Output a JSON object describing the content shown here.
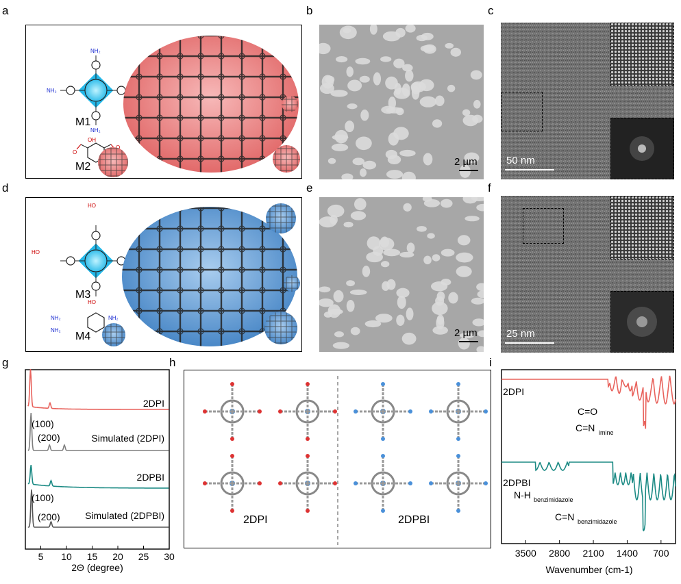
{
  "panels": {
    "a": {
      "label": "a",
      "m1": "M1",
      "m2": "M2"
    },
    "b": {
      "label": "b",
      "scale": "2 µm"
    },
    "c": {
      "label": "c",
      "scale": "50 nm"
    },
    "d": {
      "label": "d",
      "m3": "M3",
      "m4": "M4"
    },
    "e": {
      "label": "e",
      "scale": "2 µm"
    },
    "f": {
      "label": "f",
      "scale": "25 nm"
    },
    "g": {
      "label": "g"
    },
    "h": {
      "label": "h",
      "left": "2DPI",
      "right": "2DPBI"
    },
    "i": {
      "label": "i"
    }
  },
  "chem": {
    "nh2": "NH₂",
    "oh": "OH",
    "o": "O",
    "cooh": "HO",
    "nh": "NH",
    "n": "N"
  },
  "colors": {
    "red": "#e8625c",
    "teal": "#1b8a84",
    "gray": "#7f7f7f",
    "blue": "#5b9bd5",
    "pink": "#f2a7a7"
  },
  "chart_data": [
    {
      "type": "line",
      "panel": "g",
      "xlabel": "2Θ (degree)",
      "xlim": [
        2,
        30
      ],
      "x_ticks": [
        5,
        10,
        15,
        20,
        25,
        30
      ],
      "series": [
        {
          "name": "2DPI",
          "color": "#e8625c",
          "peaks": [
            [
              3.0,
              "strong"
            ],
            [
              6.8,
              "weak"
            ]
          ]
        },
        {
          "name": "Simulated (2DPI)",
          "color": "#7f7f7f",
          "peaks": [
            [
              3.1,
              "strong"
            ],
            [
              6.7,
              "weak"
            ],
            [
              9.6,
              "weak"
            ]
          ]
        },
        {
          "name": "2DPBI",
          "color": "#1b8a84",
          "peaks": [
            [
              3.1,
              "strong"
            ],
            [
              7.0,
              "weak"
            ]
          ]
        },
        {
          "name": "Simulated (2DPBI)",
          "color": "#555555",
          "peaks": [
            [
              3.2,
              "strong"
            ],
            [
              7.0,
              "weak"
            ]
          ]
        }
      ],
      "annotations": [
        "(100)",
        "(200)",
        "(100)",
        "(200)"
      ]
    },
    {
      "type": "line",
      "panel": "i",
      "xlabel": "Wavenumber (cm-1)",
      "x_ticks": [
        3500,
        2800,
        2100,
        1400,
        700
      ],
      "series": [
        {
          "name": "2DPI",
          "color": "#e8625c"
        },
        {
          "name": "2DPBI",
          "color": "#1b8a84"
        }
      ],
      "annotations": {
        "c_o": "C=O",
        "c_n_imine": "C=N",
        "c_n_imine_sub": "imine",
        "nh": "N-H",
        "nh_sub": "benzimidazole",
        "c_n_bi": "C=N",
        "c_n_bi_sub": "benzimidazole"
      }
    }
  ]
}
